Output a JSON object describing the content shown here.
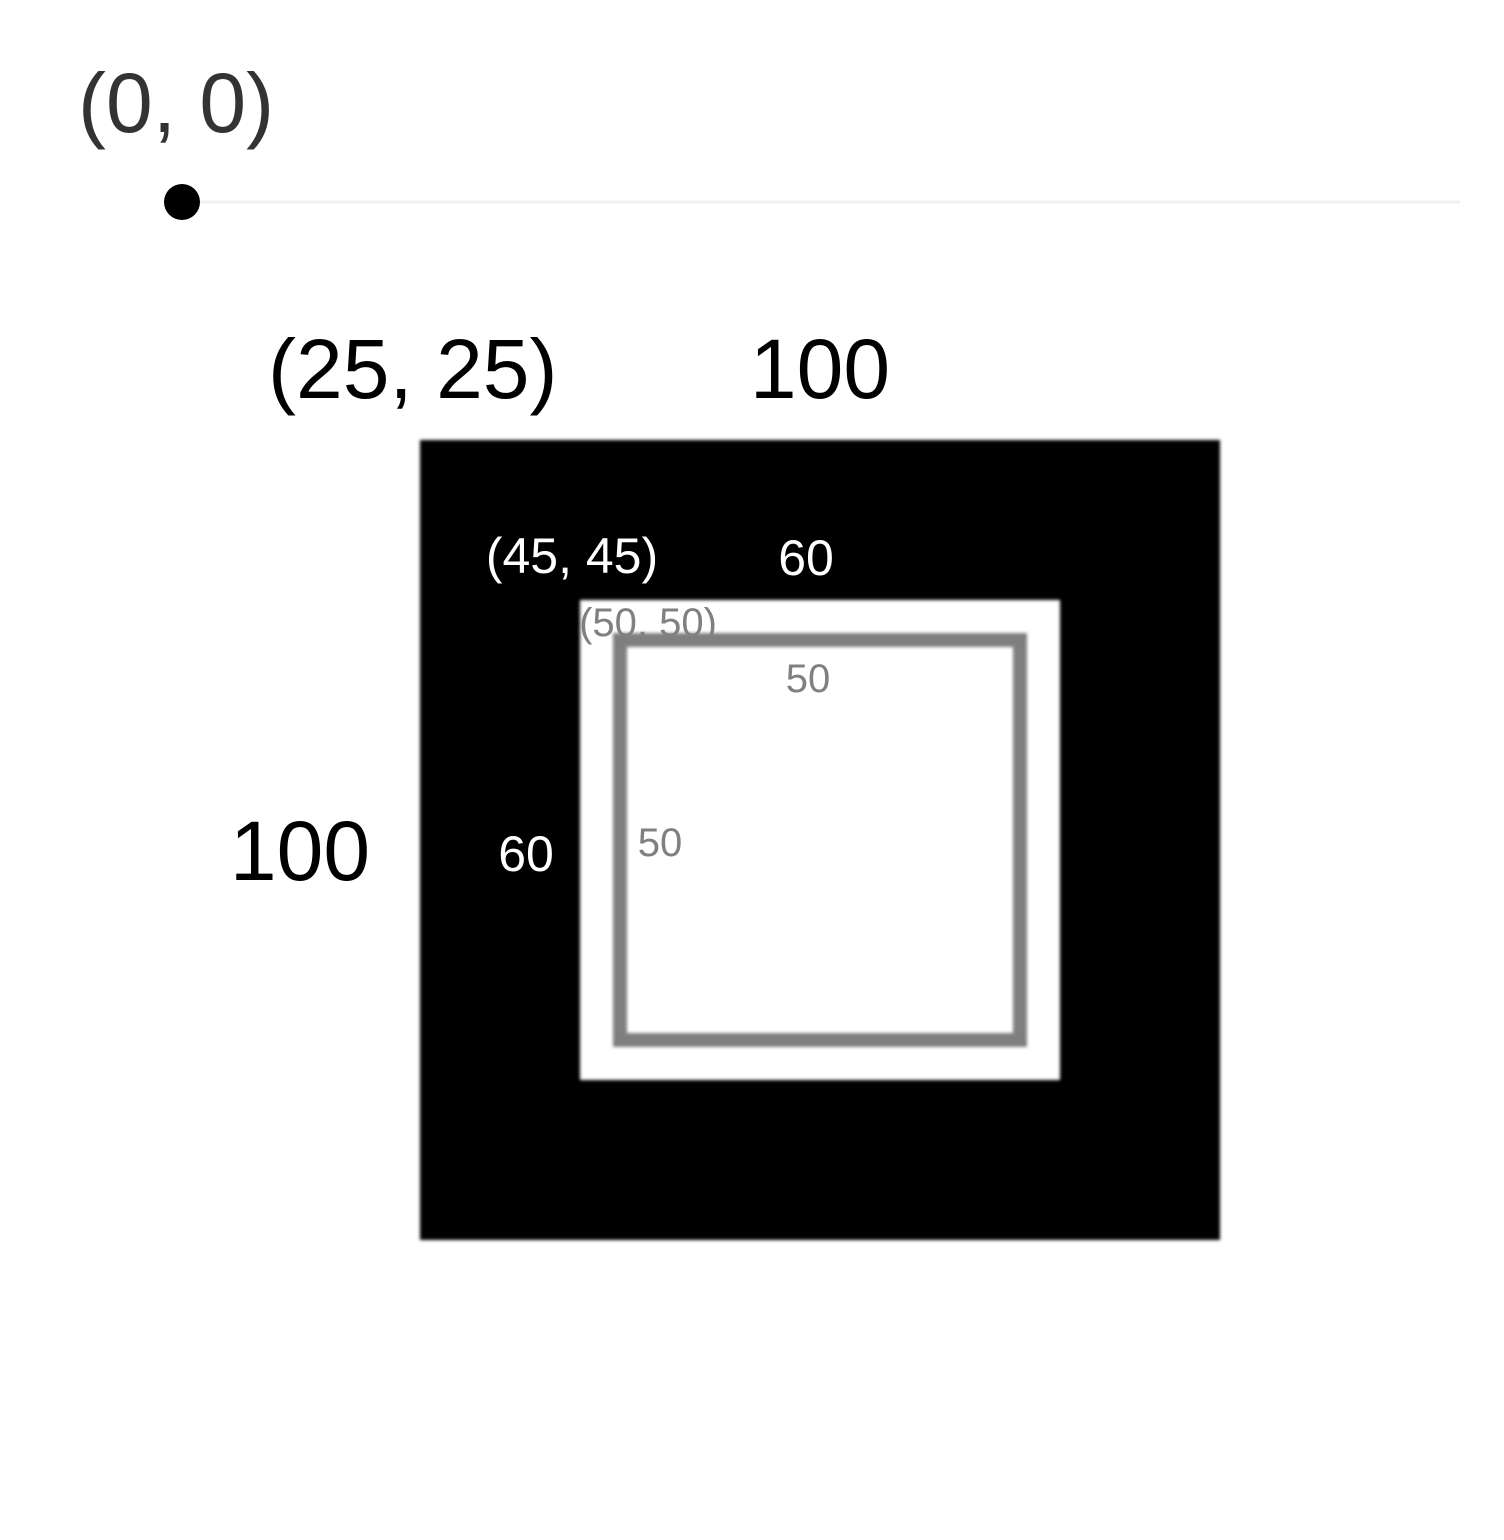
{
  "origin": {
    "label": "(0, 0)"
  },
  "outer_square": {
    "origin_label": "(25, 25)",
    "width_label": "100",
    "height_label": "100",
    "color": "#000000"
  },
  "middle_square": {
    "origin_label": "(45, 45)",
    "width_label": "60",
    "height_label": "60",
    "color": "#ffffff"
  },
  "inner_square": {
    "origin_label": "(50, 50)",
    "width_label": "50",
    "height_label": "50",
    "stroke_color": "#7f7f7f"
  }
}
